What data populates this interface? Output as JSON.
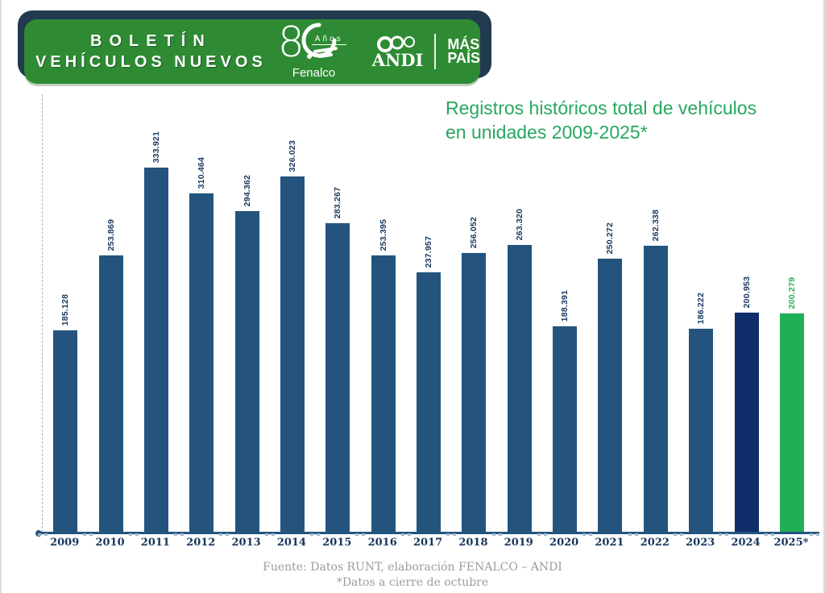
{
  "header": {
    "title_line1": "BOLETÍN",
    "title_line2": "VEHÍCULOS NUEVOS",
    "fenalco_80": "8",
    "fenalco_anos": "Años",
    "fenalco_name": "Fenalco",
    "andi_word": "ANDI",
    "mas_line1": "MÁS",
    "mas_line2": "PAÍS"
  },
  "chart_title": {
    "line1": "Registros históricos total de  vehículos",
    "line2": "en unidades 2009-2025*"
  },
  "chart_data": {
    "type": "bar",
    "title": "Registros históricos total de vehículos en unidades 2009-2025*",
    "categories": [
      "2009",
      "2010",
      "2011",
      "2012",
      "2013",
      "2014",
      "2015",
      "2016",
      "2017",
      "2018",
      "2019",
      "2020",
      "2021",
      "2022",
      "2023",
      "2024",
      "2025*"
    ],
    "values": [
      185128,
      253869,
      333921,
      310464,
      294362,
      326023,
      283267,
      253395,
      237957,
      256052,
      263320,
      188391,
      250272,
      262338,
      186222,
      200953,
      200279
    ],
    "labels": [
      "185.128",
      "253.869",
      "333.921",
      "310.464",
      "294.362",
      "326.023",
      "283.267",
      "253.395",
      "237.957",
      "256.052",
      "263.320",
      "188.391",
      "250.272",
      "262.338",
      "186.222",
      "200.953",
      "200.279"
    ],
    "xlabel": "",
    "ylabel": "",
    "ylim": [
      0,
      350000
    ],
    "grid": false,
    "legend": false,
    "bar_color_indexes": {
      "15": "bar_navy_2024",
      "16": "bar_green_2025"
    },
    "label_color_indexes": {
      "16": "bar_green_2025"
    }
  },
  "footer": {
    "source": "Fuente: Datos RUNT, elaboración FENALCO – ANDI",
    "note": "*Datos a cierre de octubre"
  },
  "colors": {
    "banner_green": "#2E8B33",
    "banner_shadow": "#223A50",
    "bar_blue": "#24547E",
    "bar_navy_2024": "#0F2D69",
    "bar_green_2025": "#1FB055",
    "title_green": "#27A860",
    "label_navy": "#17375D",
    "footer_gray": "#9C9C9C",
    "axis_blue": "#24547E",
    "dashed_axis": "#9FB8CE"
  }
}
